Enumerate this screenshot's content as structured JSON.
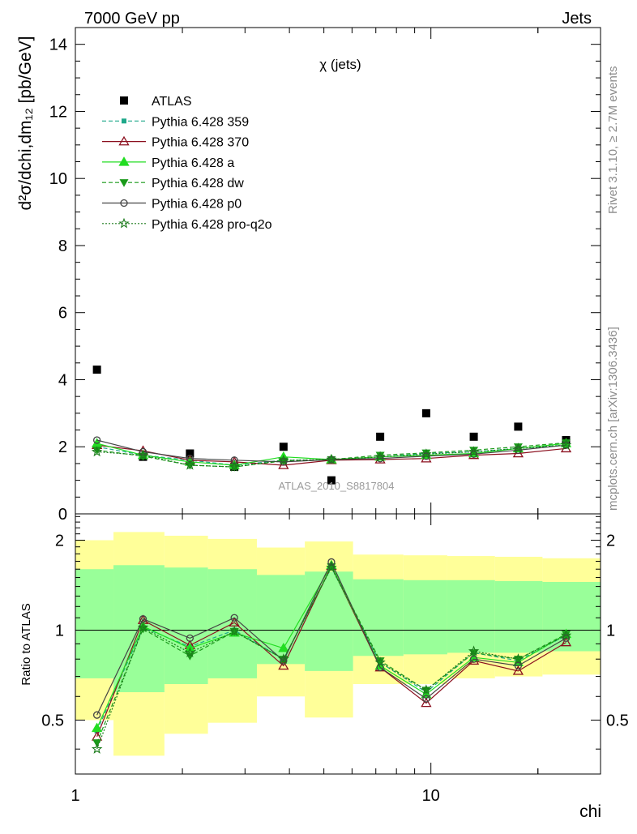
{
  "header": {
    "left": "7000 GeV pp",
    "right": "Jets"
  },
  "side_labels": {
    "rivet": "Rivet 3.1.10, ≥ 2.7M events",
    "mcplots": "mcplots.cern.ch [arXiv:1306.3436]"
  },
  "watermark": "ATLAS_2010_S8817804",
  "chart_data": [
    {
      "type": "scatter",
      "title": "χ (jets)",
      "ylabel": "d²σ/dchi,dm₁₂ [pb/GeV]",
      "xscale": "log",
      "xlim": [
        1,
        30
      ],
      "ylim": [
        0,
        14.5
      ],
      "yticks": [
        0,
        2,
        4,
        6,
        8,
        10,
        12,
        14
      ],
      "legend_position": "top-left",
      "x": [
        1.15,
        1.55,
        2.1,
        2.8,
        3.85,
        5.25,
        7.2,
        9.7,
        13.2,
        17.6,
        24
      ],
      "series": [
        {
          "name": "ATLAS",
          "color": "#000000",
          "marker": "square",
          "line": "none",
          "values": [
            4.3,
            1.7,
            1.8,
            1.4,
            2.0,
            1.0,
            2.3,
            3.0,
            2.3,
            2.6,
            2.2
          ]
        },
        {
          "name": "Pythia 6.428 359",
          "color": "#1fa88a",
          "marker": "square-small",
          "line": "dashed",
          "values": [
            2.0,
            1.75,
            1.6,
            1.45,
            1.6,
            1.6,
            1.7,
            1.8,
            1.85,
            1.95,
            2.05
          ]
        },
        {
          "name": "Pythia 6.428 370",
          "color": "#8b0f1e",
          "marker": "triangle-open",
          "line": "solid",
          "values": [
            2.05,
            1.88,
            1.6,
            1.55,
            1.45,
            1.6,
            1.62,
            1.65,
            1.75,
            1.8,
            1.95
          ]
        },
        {
          "name": "Pythia 6.428 a",
          "color": "#22dd22",
          "marker": "triangle",
          "line": "solid",
          "values": [
            2.1,
            1.75,
            1.55,
            1.45,
            1.7,
            1.62,
            1.7,
            1.75,
            1.8,
            1.95,
            2.1
          ]
        },
        {
          "name": "Pythia 6.428 dw",
          "color": "#1a9a1a",
          "marker": "triangle-down",
          "line": "dashed",
          "values": [
            1.9,
            1.72,
            1.45,
            1.4,
            1.58,
            1.62,
            1.75,
            1.82,
            1.9,
            2.0,
            2.12
          ]
        },
        {
          "name": "Pythia 6.428 p0",
          "color": "#444444",
          "marker": "circle-open",
          "line": "solid",
          "values": [
            2.2,
            1.85,
            1.65,
            1.6,
            1.55,
            1.62,
            1.65,
            1.72,
            1.78,
            1.9,
            2.05
          ]
        },
        {
          "name": "Pythia 6.428 pro-q2o",
          "color": "#1a7a1a",
          "marker": "star",
          "line": "dotted",
          "values": [
            1.85,
            1.75,
            1.45,
            1.4,
            1.6,
            1.62,
            1.7,
            1.78,
            1.85,
            1.95,
            2.05
          ]
        }
      ]
    },
    {
      "type": "scatter",
      "ylabel": "Ratio to ATLAS",
      "xlabel": "chi",
      "xscale": "log",
      "yscale": "log",
      "xlim": [
        1,
        30
      ],
      "ylim": [
        0.33,
        2.45
      ],
      "xticks": [
        1,
        10
      ],
      "yticks": [
        0.5,
        1,
        2
      ],
      "reference_line": 1,
      "band_edges": [
        1,
        1.28,
        1.78,
        2.36,
        3.24,
        4.42,
        6.04,
        8.37,
        11.12,
        15.14,
        20.6,
        30
      ],
      "band_outer": {
        "color": "#ffff99",
        "low": [
          0.5,
          0.38,
          0.45,
          0.49,
          0.6,
          0.51,
          0.66,
          0.66,
          0.69,
          0.7,
          0.71
        ],
        "high": [
          2.0,
          2.13,
          2.07,
          2.02,
          1.89,
          1.98,
          1.79,
          1.78,
          1.77,
          1.76,
          1.74
        ]
      },
      "band_inner": {
        "color": "#99ff99",
        "low": [
          0.69,
          0.62,
          0.66,
          0.69,
          0.77,
          0.73,
          0.82,
          0.83,
          0.84,
          0.84,
          0.85
        ],
        "high": [
          1.6,
          1.65,
          1.62,
          1.6,
          1.53,
          1.57,
          1.48,
          1.47,
          1.47,
          1.46,
          1.45
        ]
      },
      "x": [
        1.15,
        1.55,
        2.1,
        2.8,
        3.85,
        5.25,
        7.2,
        9.7,
        13.2,
        17.6,
        24
      ],
      "series": [
        {
          "name": "Pythia 6.428 359",
          "color": "#1fa88a",
          "marker": "square-small",
          "line": "dashed",
          "values": [
            0.46,
            1.02,
            0.88,
            1.0,
            0.8,
            1.62,
            0.78,
            0.62,
            0.84,
            0.79,
            0.96
          ]
        },
        {
          "name": "Pythia 6.428 370",
          "color": "#8b0f1e",
          "marker": "triangle-open",
          "line": "solid",
          "values": [
            0.44,
            1.08,
            0.89,
            1.06,
            0.76,
            1.64,
            0.75,
            0.57,
            0.79,
            0.73,
            0.91
          ]
        },
        {
          "name": "Pythia 6.428 a",
          "color": "#22dd22",
          "marker": "triangle",
          "line": "solid",
          "values": [
            0.47,
            1.03,
            0.87,
            0.98,
            0.87,
            1.65,
            0.76,
            0.61,
            0.81,
            0.78,
            0.97
          ]
        },
        {
          "name": "Pythia 6.428 dw",
          "color": "#1a9a1a",
          "marker": "triangle-down",
          "line": "dashed",
          "values": [
            0.42,
            1.01,
            0.82,
            0.99,
            0.8,
            1.63,
            0.79,
            0.63,
            0.84,
            0.8,
            0.97
          ]
        },
        {
          "name": "Pythia 6.428 p0",
          "color": "#444444",
          "marker": "circle-open",
          "line": "solid",
          "values": [
            0.52,
            1.09,
            0.94,
            1.1,
            0.79,
            1.69,
            0.75,
            0.59,
            0.8,
            0.76,
            0.94
          ]
        },
        {
          "name": "Pythia 6.428 pro-q2o",
          "color": "#1a7a1a",
          "marker": "star",
          "line": "dotted",
          "values": [
            0.4,
            1.02,
            0.84,
            0.99,
            0.8,
            1.62,
            0.78,
            0.63,
            0.85,
            0.8,
            0.96
          ]
        }
      ]
    }
  ]
}
